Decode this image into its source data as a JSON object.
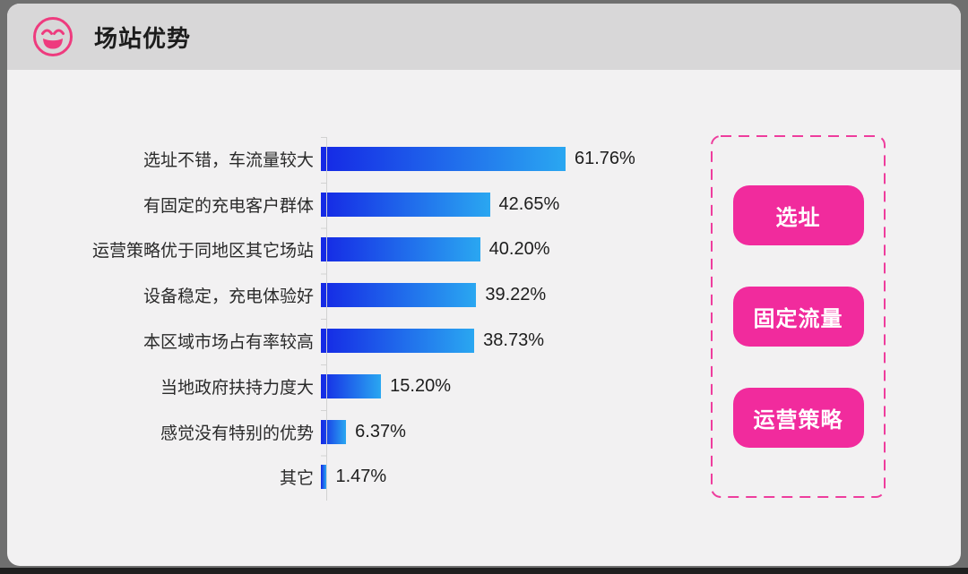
{
  "header": {
    "title": "场站优势",
    "icon": "smiley-face-icon",
    "icon_color": "#ee3b7e",
    "background": "#d8d7d8"
  },
  "chart_data": {
    "type": "bar",
    "orientation": "horizontal",
    "title": "场站优势",
    "categories": [
      "选址不错，车流量较大",
      "有固定的充电客户群体",
      "运营策略优于同地区其它场站",
      "设备稳定，充电体验好",
      "本区域市场占有率较高",
      "当地政府扶持力度大",
      "感觉没有特别的优势",
      "其它"
    ],
    "values": [
      61.76,
      42.65,
      40.2,
      39.22,
      38.73,
      15.2,
      6.37,
      1.47
    ],
    "value_labels": [
      "61.76%",
      "42.65%",
      "40.20%",
      "39.22%",
      "38.73%",
      "15.20%",
      "6.37%",
      "1.47%"
    ],
    "xlabel": "",
    "ylabel": "",
    "xlim": [
      0,
      65
    ],
    "grid": false,
    "legend": false,
    "bar_gradient": [
      "#1528e5",
      "#2aa7f1"
    ],
    "axis_color": "#d2d2d2"
  },
  "tag_panel": {
    "border_color": "#ee3d9d",
    "button_color": "#f12b9d",
    "buttons": [
      {
        "label": "选址"
      },
      {
        "label": "固定流量"
      },
      {
        "label": "运营策略"
      }
    ]
  }
}
